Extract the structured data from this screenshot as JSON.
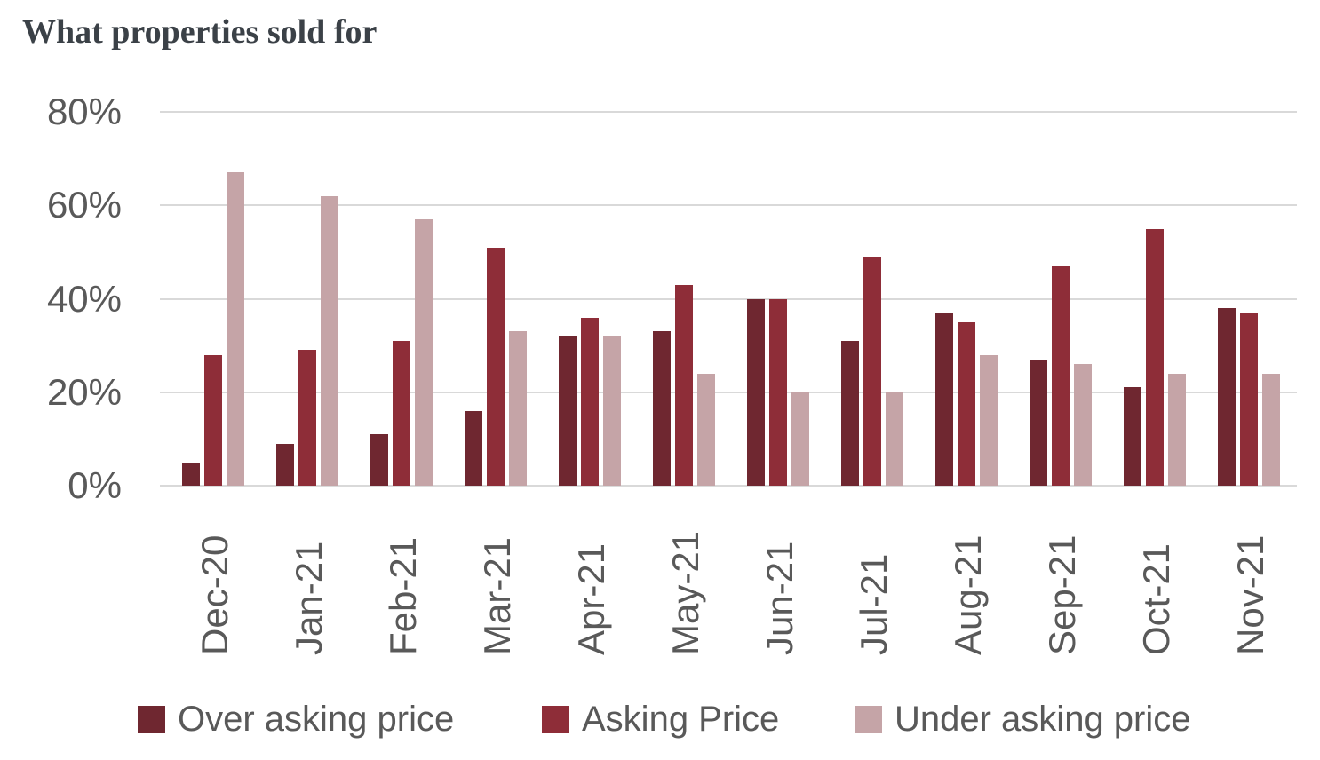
{
  "title": "What properties sold for",
  "chart_data": {
    "type": "bar",
    "title": "What properties sold for",
    "categories": [
      "Dec-20",
      "Jan-21",
      "Feb-21",
      "Mar-21",
      "Apr-21",
      "May-21",
      "Jun-21",
      "Jul-21",
      "Aug-21",
      "Sep-21",
      "Oct-21",
      "Nov-21"
    ],
    "series": [
      {
        "name": "Over asking price",
        "color": "#6f2730",
        "values": [
          5,
          9,
          11,
          16,
          32,
          33,
          40,
          31,
          37,
          27,
          21,
          38
        ]
      },
      {
        "name": "Asking Price",
        "color": "#8e2d38",
        "values": [
          28,
          29,
          31,
          51,
          36,
          43,
          40,
          49,
          35,
          47,
          55,
          37
        ]
      },
      {
        "name": "Under asking price",
        "color": "#c5a4a7",
        "values": [
          67,
          62,
          57,
          33,
          32,
          24,
          20,
          20,
          28,
          26,
          24,
          24
        ]
      }
    ],
    "xlabel": "",
    "ylabel": "",
    "ylim": [
      0,
      80
    ],
    "ytick_step": 20,
    "yticks": [
      "0%",
      "20%",
      "40%",
      "60%",
      "80%"
    ],
    "grid": true,
    "legend_position": "bottom",
    "colors": {
      "gridline": "#d9d9d9",
      "axis_text": "#595959",
      "title_text": "#3b4147",
      "background": "#ffffff"
    }
  }
}
